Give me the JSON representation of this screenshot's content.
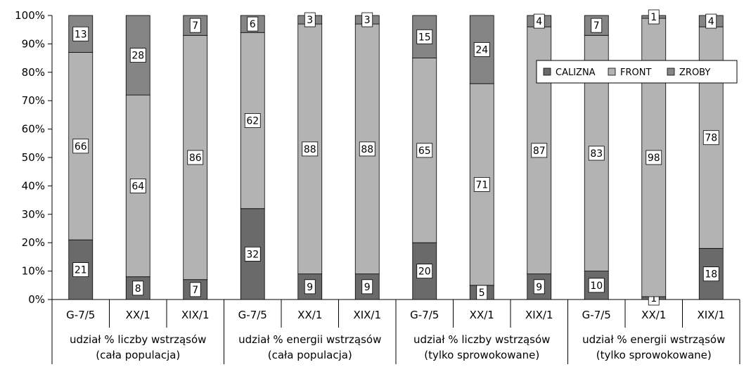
{
  "chart_data": {
    "type": "bar",
    "stacked": "percent",
    "ylim": [
      0,
      100
    ],
    "y_ticks": [
      "0%",
      "10%",
      "20%",
      "30%",
      "40%",
      "50%",
      "60%",
      "70%",
      "80%",
      "90%",
      "100%"
    ],
    "categories": [
      "G-7/5",
      "XX/1",
      "XIX/1",
      "G-7/5",
      "XX/1",
      "XIX/1",
      "G-7/5",
      "XX/1",
      "XIX/1",
      "G-7/5",
      "XX/1",
      "XIX/1"
    ],
    "groups": [
      {
        "label_line1": "udział % liczby wstrząsów",
        "label_line2": "(cała populacja)"
      },
      {
        "label_line1": "udział % energii wstrząsów",
        "label_line2": "(cała populacja)"
      },
      {
        "label_line1": "udział % liczby wstrząsów",
        "label_line2": "(tylko sprowokowane)"
      },
      {
        "label_line1": "udział % energii wstrząsów",
        "label_line2": "(tylko sprowokowane)"
      }
    ],
    "series": [
      {
        "name": "CALIZNA",
        "color": "#6a6a6a",
        "values": [
          21,
          8,
          7,
          32,
          9,
          9,
          20,
          5,
          9,
          10,
          1,
          18
        ]
      },
      {
        "name": "FRONT",
        "color": "#b3b3b3",
        "values": [
          66,
          64,
          86,
          62,
          88,
          88,
          65,
          71,
          87,
          83,
          98,
          78
        ]
      },
      {
        "name": "ZROBY",
        "color": "#858585",
        "values": [
          13,
          28,
          7,
          6,
          3,
          3,
          15,
          24,
          4,
          7,
          1,
          4
        ]
      }
    ],
    "legend_position": "top-right",
    "grid": false
  }
}
